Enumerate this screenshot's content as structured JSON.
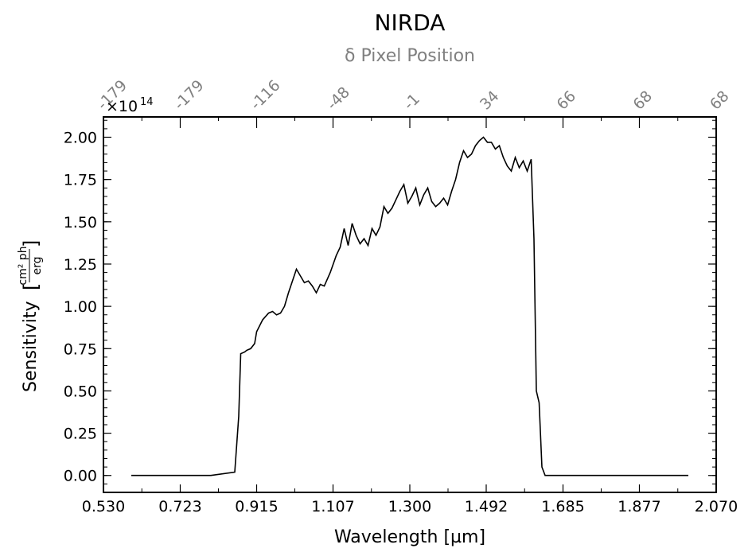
{
  "chart_data": {
    "type": "line",
    "title": "NIRDA",
    "subtitle": "δ Pixel Position",
    "xlabel": "Wavelength [µm]",
    "ylabel": "Sensitivity",
    "ylabel_unit_num": "cm² ph",
    "ylabel_unit_den": "erg",
    "y_multiplier": "×10",
    "y_exponent": "14",
    "xlim": [
      0.53,
      2.07
    ],
    "ylim": [
      -0.1,
      2.12
    ],
    "x_ticks": [
      0.53,
      0.723,
      0.915,
      1.107,
      1.3,
      1.492,
      1.685,
      1.877,
      2.07
    ],
    "x_tick_labels": [
      "0.530",
      "0.723",
      "0.915",
      "1.107",
      "1.300",
      "1.492",
      "1.685",
      "1.877",
      "2.070"
    ],
    "y_ticks": [
      0.0,
      0.25,
      0.5,
      0.75,
      1.0,
      1.25,
      1.5,
      1.75,
      2.0
    ],
    "y_tick_labels": [
      "0.00",
      "0.25",
      "0.50",
      "0.75",
      "1.00",
      "1.25",
      "1.50",
      "1.75",
      "2.00"
    ],
    "top_ticks": [
      0.53,
      0.723,
      0.915,
      1.107,
      1.3,
      1.492,
      1.685,
      1.877,
      2.07
    ],
    "top_tick_labels": [
      "-179",
      "-179",
      "-116",
      "-48",
      "-1",
      "34",
      "66",
      "68",
      "68"
    ],
    "grid": false,
    "line_color": "#000000",
    "series": [
      {
        "x": [
          0.6,
          0.8,
          0.86,
          0.87,
          0.875,
          0.885,
          0.89,
          0.9,
          0.91,
          0.915,
          0.93,
          0.945,
          0.955,
          0.965,
          0.975,
          0.985,
          0.995,
          1.005,
          1.015,
          1.025,
          1.035,
          1.045,
          1.055,
          1.065,
          1.075,
          1.085,
          1.1,
          1.115,
          1.125,
          1.135,
          1.145,
          1.155,
          1.165,
          1.175,
          1.185,
          1.195,
          1.205,
          1.215,
          1.225,
          1.235,
          1.245,
          1.255,
          1.265,
          1.275,
          1.285,
          1.295,
          1.305,
          1.315,
          1.325,
          1.335,
          1.345,
          1.355,
          1.365,
          1.375,
          1.385,
          1.395,
          1.405,
          1.415,
          1.425,
          1.435,
          1.445,
          1.455,
          1.465,
          1.475,
          1.485,
          1.495,
          1.505,
          1.515,
          1.525,
          1.535,
          1.545,
          1.555,
          1.565,
          1.575,
          1.585,
          1.595,
          1.605,
          1.612,
          1.618,
          1.625,
          1.632,
          1.64,
          1.645,
          1.7,
          2.0
        ],
        "y": [
          0.0,
          0.0,
          0.02,
          0.35,
          0.72,
          0.73,
          0.74,
          0.75,
          0.78,
          0.85,
          0.92,
          0.96,
          0.97,
          0.95,
          0.96,
          1.0,
          1.08,
          1.15,
          1.22,
          1.18,
          1.14,
          1.15,
          1.12,
          1.08,
          1.13,
          1.12,
          1.2,
          1.3,
          1.35,
          1.46,
          1.36,
          1.49,
          1.42,
          1.37,
          1.4,
          1.36,
          1.46,
          1.42,
          1.47,
          1.59,
          1.55,
          1.58,
          1.63,
          1.68,
          1.72,
          1.61,
          1.65,
          1.7,
          1.6,
          1.66,
          1.7,
          1.62,
          1.59,
          1.61,
          1.64,
          1.6,
          1.68,
          1.75,
          1.85,
          1.92,
          1.88,
          1.9,
          1.95,
          1.98,
          2.0,
          1.97,
          1.97,
          1.93,
          1.95,
          1.88,
          1.83,
          1.8,
          1.88,
          1.82,
          1.86,
          1.8,
          1.87,
          1.4,
          0.5,
          0.43,
          0.05,
          0.0,
          0.0,
          0.0,
          0.0
        ]
      }
    ]
  }
}
